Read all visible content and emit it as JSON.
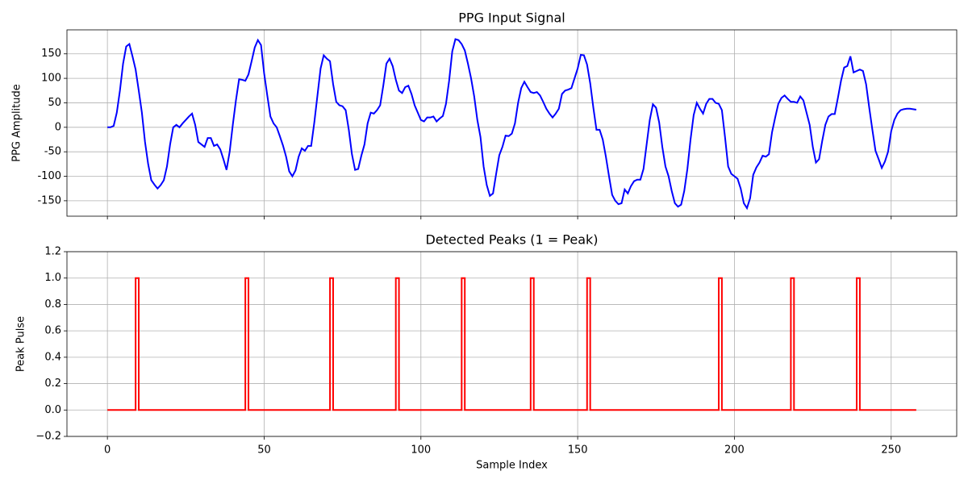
{
  "chart_data": [
    {
      "type": "line",
      "title": "PPG Input Signal",
      "ylabel": "PPG Amplitude",
      "color": "#0000ff",
      "grid": true,
      "xlim": [
        -12.9,
        270.9
      ],
      "xticks": [
        0,
        50,
        100,
        150,
        200,
        250
      ],
      "ylim": [
        -181.5,
        199
      ],
      "yticks": [
        -150,
        -100,
        -50,
        0,
        50,
        100,
        150
      ],
      "values": [
        0,
        0,
        3,
        30,
        75,
        130,
        165,
        170,
        145,
        118,
        75,
        30,
        -30,
        -75,
        -108,
        -117,
        -125,
        -118,
        -108,
        -80,
        -35,
        0,
        5,
        0,
        8,
        15,
        22,
        28,
        5,
        -30,
        -35,
        -40,
        -22,
        -22,
        -38,
        -35,
        -45,
        -65,
        -87,
        -50,
        5,
        55,
        98,
        97,
        95,
        108,
        135,
        163,
        178,
        168,
        110,
        65,
        22,
        8,
        0,
        -18,
        -37,
        -60,
        -90,
        -100,
        -88,
        -60,
        -43,
        -48,
        -38,
        -38,
        10,
        65,
        120,
        147,
        140,
        135,
        88,
        52,
        45,
        43,
        35,
        -5,
        -55,
        -87,
        -85,
        -58,
        -35,
        8,
        30,
        28,
        35,
        45,
        85,
        130,
        140,
        125,
        97,
        75,
        70,
        82,
        85,
        68,
        45,
        30,
        15,
        12,
        20,
        20,
        22,
        12,
        18,
        23,
        48,
        95,
        155,
        180,
        178,
        170,
        157,
        130,
        100,
        63,
        15,
        -20,
        -80,
        -118,
        -140,
        -135,
        -95,
        -57,
        -40,
        -17,
        -18,
        -13,
        8,
        50,
        80,
        93,
        82,
        72,
        70,
        72,
        65,
        52,
        38,
        28,
        20,
        28,
        38,
        68,
        75,
        77,
        80,
        100,
        120,
        148,
        147,
        128,
        90,
        40,
        -5,
        -5,
        -25,
        -60,
        -100,
        -138,
        -150,
        -157,
        -155,
        -127,
        -135,
        -120,
        -110,
        -107,
        -107,
        -85,
        -35,
        15,
        47,
        40,
        10,
        -40,
        -80,
        -100,
        -130,
        -155,
        -162,
        -158,
        -130,
        -85,
        -25,
        25,
        50,
        38,
        28,
        48,
        58,
        58,
        50,
        48,
        35,
        -20,
        -80,
        -95,
        -100,
        -105,
        -125,
        -155,
        -165,
        -145,
        -97,
        -82,
        -72,
        -58,
        -60,
        -55,
        -10,
        20,
        48,
        60,
        65,
        58,
        52,
        52,
        50,
        63,
        55,
        30,
        5,
        -40,
        -72,
        -65,
        -28,
        5,
        22,
        27,
        27,
        60,
        95,
        122,
        125,
        145,
        112,
        115,
        118,
        115,
        88,
        40,
        -5,
        -48,
        -65,
        -83,
        -70,
        -50,
        -8,
        15,
        28,
        35,
        37,
        38,
        38,
        37,
        36
      ]
    },
    {
      "type": "step",
      "title": "Detected Peaks (1 = Peak)",
      "ylabel": "Peak Pulse",
      "xlabel": "Sample Index",
      "color": "#ff0000",
      "grid": true,
      "xlim": [
        -12.9,
        270.9
      ],
      "xticks": [
        0,
        50,
        100,
        150,
        200,
        250
      ],
      "ylim": [
        -0.2,
        1.2
      ],
      "yticks": [
        {
          "value": -0.2,
          "label": "−0.2"
        },
        {
          "value": 0,
          "label": "0.0"
        },
        {
          "value": 0.2,
          "label": "0.2"
        },
        {
          "value": 0.4,
          "label": "0.4"
        },
        {
          "value": 0.6,
          "label": "0.6"
        },
        {
          "value": 0.8,
          "label": "0.8"
        },
        {
          "value": 1,
          "label": "1.0"
        },
        {
          "value": 1.2,
          "label": "1.2"
        }
      ],
      "values": [
        0,
        0,
        0,
        0,
        0,
        0,
        0,
        0,
        0,
        1,
        0,
        0,
        0,
        0,
        0,
        0,
        0,
        0,
        0,
        0,
        0,
        0,
        0,
        0,
        0,
        0,
        0,
        0,
        0,
        0,
        0,
        0,
        0,
        0,
        0,
        0,
        0,
        0,
        0,
        0,
        0,
        0,
        0,
        0,
        1,
        0,
        0,
        0,
        0,
        0,
        0,
        0,
        0,
        0,
        0,
        0,
        0,
        0,
        0,
        0,
        0,
        0,
        0,
        0,
        0,
        0,
        0,
        0,
        0,
        0,
        0,
        1,
        0,
        0,
        0,
        0,
        0,
        0,
        0,
        0,
        0,
        0,
        0,
        0,
        0,
        0,
        0,
        0,
        0,
        0,
        0,
        0,
        1,
        0,
        0,
        0,
        0,
        0,
        0,
        0,
        0,
        0,
        0,
        0,
        0,
        0,
        0,
        0,
        0,
        0,
        0,
        0,
        0,
        1,
        0,
        0,
        0,
        0,
        0,
        0,
        0,
        0,
        0,
        0,
        0,
        0,
        0,
        0,
        0,
        0,
        0,
        0,
        0,
        0,
        0,
        1,
        0,
        0,
        0,
        0,
        0,
        0,
        0,
        0,
        0,
        0,
        0,
        0,
        0,
        0,
        0,
        0,
        0,
        1,
        0,
        0,
        0,
        0,
        0,
        0,
        0,
        0,
        0,
        0,
        0,
        0,
        0,
        0,
        0,
        0,
        0,
        0,
        0,
        0,
        0,
        0,
        0,
        0,
        0,
        0,
        0,
        0,
        0,
        0,
        0,
        0,
        0,
        0,
        0,
        0,
        0,
        0,
        0,
        0,
        0,
        1,
        0,
        0,
        0,
        0,
        0,
        0,
        0,
        0,
        0,
        0,
        0,
        0,
        0,
        0,
        0,
        0,
        0,
        0,
        0,
        0,
        0,
        0,
        1,
        0,
        0,
        0,
        0,
        0,
        0,
        0,
        0,
        0,
        0,
        0,
        0,
        0,
        0,
        0,
        0,
        0,
        0,
        0,
        0,
        1,
        0,
        0,
        0,
        0,
        0,
        0,
        0,
        0,
        0,
        0,
        0,
        0,
        0,
        0,
        0,
        0,
        0,
        0,
        0
      ]
    }
  ]
}
